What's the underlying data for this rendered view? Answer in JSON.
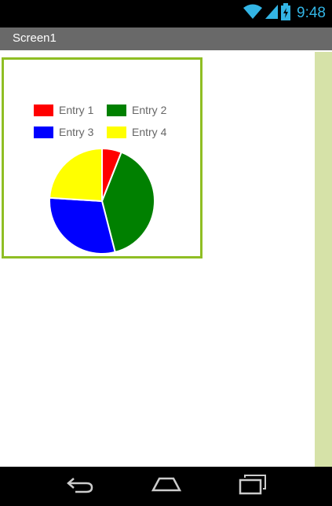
{
  "status_bar": {
    "time": "9:48",
    "icons": [
      "wifi-icon",
      "cell-signal-icon",
      "battery-icon"
    ]
  },
  "app": {
    "title": "Screen1"
  },
  "colors": {
    "title_bar": "#696969",
    "chart_border": "#8fbe24",
    "scroll_track": "#d6e2a8",
    "status_accent": "#33b5e5"
  },
  "navigation": {
    "buttons": [
      "back-icon",
      "home-icon",
      "recent-apps-icon"
    ]
  },
  "chart_data": {
    "type": "pie",
    "categories": [
      "Entry 1",
      "Entry 2",
      "Entry 3",
      "Entry 4"
    ],
    "values": [
      6,
      40,
      30,
      24
    ],
    "colors": [
      "#ff0000",
      "#008000",
      "#0000ff",
      "#ffff00"
    ],
    "legend": "top"
  }
}
